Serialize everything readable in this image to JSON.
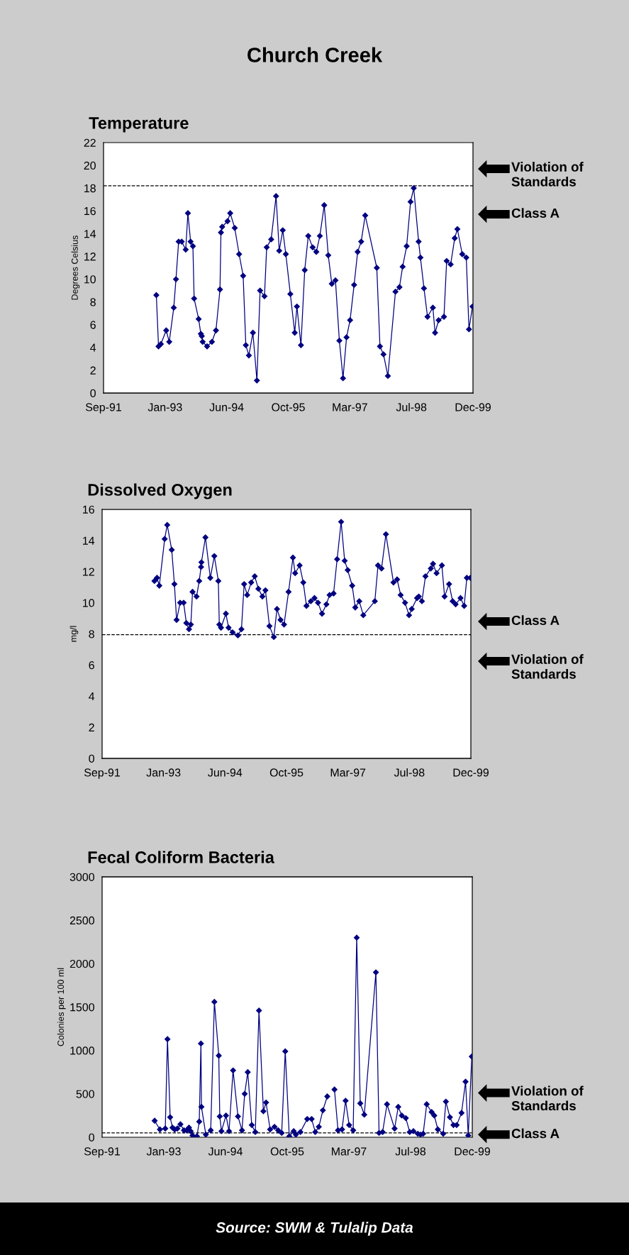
{
  "chart_data": [
    {
      "type": "line",
      "title": "Temperature",
      "ylabel": "Degrees Celsius",
      "marker": "diamond",
      "line_style": "solid",
      "xlim": [
        "1991-09-01",
        "1999-12-18"
      ],
      "xticks": [
        {
          "value": "1991-09-01",
          "label": "Sep-91"
        },
        {
          "value": "1993-01-18",
          "label": "Jan-93"
        },
        {
          "value": "1994-06-07",
          "label": "Jun-94"
        },
        {
          "value": "1995-10-25",
          "label": "Oct-95"
        },
        {
          "value": "1997-03-13",
          "label": "Mar-97"
        },
        {
          "value": "1998-07-31",
          "label": "Jul-98"
        },
        {
          "value": "1999-12-18",
          "label": "Dec-99"
        }
      ],
      "ylim": [
        0,
        22
      ],
      "yticks": [
        0,
        2,
        4,
        6,
        8,
        10,
        12,
        14,
        16,
        18,
        20,
        22
      ],
      "ref_lines": [
        {
          "axis": "y",
          "value": 18.2,
          "color": "#000000",
          "line_style": "dashed"
        }
      ],
      "annotations": [
        "Church Creek",
        "Violation of\nStandards",
        "Class A"
      ],
      "series": [
        {
          "color": "#000080",
          "x": [
            "1992-11-07",
            "1992-11-25",
            "1992-12-14",
            "1993-01-27",
            "1993-02-21",
            "1993-03-30",
            "1993-04-17",
            "1993-05-09",
            "1993-06-03",
            "1993-07-06",
            "1993-07-24",
            "1993-08-15",
            "1993-09-03",
            "1993-09-13",
            "1993-10-20",
            "1993-11-07",
            "1993-11-15",
            "1993-11-22",
            "1993-12-28",
            "1994-02-06",
            "1994-03-11",
            "1994-04-13",
            "1994-04-21",
            "1994-05-01",
            "1994-06-14",
            "1994-07-06",
            "1994-08-12",
            "1994-09-17",
            "1994-10-20",
            "1994-11-11",
            "1994-12-06",
            "1995-01-08",
            "1995-02-10",
            "1995-03-08",
            "1995-04-13",
            "1995-05-01",
            "1995-06-07",
            "1995-07-17",
            "1995-08-12",
            "1995-09-10",
            "1995-10-05",
            "1995-11-11",
            "1995-12-17",
            "1996-01-04",
            "1996-02-06",
            "1996-03-08",
            "1996-04-06",
            "1996-05-12",
            "1996-06-11",
            "1996-07-10",
            "1996-08-15",
            "1996-09-17",
            "1996-10-16",
            "1996-11-15",
            "1996-12-17",
            "1997-01-16",
            "1997-02-14",
            "1997-03-15",
            "1997-04-17",
            "1997-05-16",
            "1997-06-14",
            "1997-07-17",
            "1997-10-20",
            "1997-11-15",
            "1997-12-14",
            "1998-01-19",
            "1998-03-22",
            "1998-04-24",
            "1998-05-20",
            "1998-06-22",
            "1998-07-24",
            "1998-08-19",
            "1998-09-28",
            "1998-10-13",
            "1998-11-11",
            "1998-12-10",
            "1999-01-23",
            "1999-02-10",
            "1999-03-11",
            "1999-04-24",
            "1999-05-16",
            "1999-06-18",
            "1999-07-21",
            "1999-08-12",
            "1999-09-21",
            "1999-10-24",
            "1999-11-15",
            "1999-12-14"
          ],
          "values": [
            8.6,
            4.1,
            4.3,
            5.5,
            4.5,
            7.5,
            10.0,
            13.3,
            13.3,
            12.6,
            15.8,
            13.3,
            12.9,
            8.3,
            6.5,
            5.2,
            5.0,
            4.5,
            4.1,
            4.5,
            5.5,
            9.1,
            14.1,
            14.6,
            15.1,
            15.8,
            14.5,
            12.2,
            10.3,
            4.2,
            3.3,
            5.3,
            1.1,
            9.0,
            8.5,
            12.8,
            13.5,
            17.3,
            12.5,
            14.3,
            12.2,
            8.7,
            5.3,
            7.6,
            4.2,
            10.8,
            13.8,
            12.8,
            12.4,
            13.8,
            16.5,
            12.1,
            9.6,
            9.9,
            4.6,
            1.3,
            4.9,
            6.4,
            9.5,
            12.4,
            13.3,
            15.6,
            11.0,
            4.1,
            3.4,
            1.5,
            8.9,
            9.3,
            11.1,
            12.9,
            16.8,
            18.0,
            13.3,
            11.9,
            9.2,
            6.7,
            7.5,
            5.3,
            6.4,
            6.7,
            11.6,
            11.3,
            13.6,
            14.4,
            12.2,
            11.9,
            5.6,
            7.6
          ]
        }
      ]
    },
    {
      "type": "line",
      "title": "Dissolved Oxygen",
      "ylabel": "mg/l",
      "marker": "diamond",
      "line_style": "solid",
      "xlim": [
        "1991-09-01",
        "1999-12-18"
      ],
      "xticks": [
        {
          "value": "1991-09-01",
          "label": "Sep-91"
        },
        {
          "value": "1993-01-18",
          "label": "Jan-93"
        },
        {
          "value": "1994-06-07",
          "label": "Jun-94"
        },
        {
          "value": "1995-10-25",
          "label": "Oct-95"
        },
        {
          "value": "1997-03-13",
          "label": "Mar-97"
        },
        {
          "value": "1998-07-31",
          "label": "Jul-98"
        },
        {
          "value": "1999-12-18",
          "label": "Dec-99"
        }
      ],
      "ylim": [
        0,
        16
      ],
      "yticks": [
        0,
        2,
        4,
        6,
        8,
        10,
        12,
        14,
        16
      ],
      "ref_lines": [
        {
          "axis": "y",
          "value": 7.95,
          "color": "#000000",
          "line_style": "dashed"
        }
      ],
      "annotations": [
        "Class A",
        "Violation of\nStandards"
      ],
      "series": [
        {
          "color": "#000080",
          "x": [
            "1992-11-04",
            "1992-11-25",
            "1992-12-14",
            "1993-01-27",
            "1993-02-17",
            "1993-03-26",
            "1993-04-17",
            "1993-05-05",
            "1993-06-03",
            "1993-07-02",
            "1993-07-24",
            "1993-08-15",
            "1993-08-30",
            "1993-09-13",
            "1993-10-16",
            "1993-11-07",
            "1993-11-22",
            "1993-11-25",
            "1993-12-28",
            "1994-02-06",
            "1994-03-11",
            "1994-04-13",
            "1994-04-21",
            "1994-05-05",
            "1994-06-14",
            "1994-07-06",
            "1994-08-08",
            "1994-09-21",
            "1994-10-20",
            "1994-11-11",
            "1994-12-06",
            "1995-01-08",
            "1995-02-06",
            "1995-03-08",
            "1995-04-10",
            "1995-05-05",
            "1995-06-07",
            "1995-07-13",
            "1995-08-08",
            "1995-09-06",
            "1995-10-05",
            "1995-11-11",
            "1995-12-17",
            "1996-01-04",
            "1996-02-10",
            "1996-03-11",
            "1996-04-06",
            "1996-05-12",
            "1996-06-11",
            "1996-07-10",
            "1996-08-12",
            "1996-09-17",
            "1996-10-13",
            "1996-11-15",
            "1996-12-14",
            "1997-01-16",
            "1997-02-14",
            "1997-03-11",
            "1997-04-17",
            "1997-05-12",
            "1997-06-14",
            "1997-07-17",
            "1997-10-20",
            "1997-11-15",
            "1997-12-14",
            "1998-01-19",
            "1998-03-22",
            "1998-04-21",
            "1998-05-20",
            "1998-06-25",
            "1998-07-28",
            "1998-08-19",
            "1998-10-02",
            "1998-10-16",
            "1998-11-11",
            "1998-12-10",
            "1999-01-23",
            "1999-02-10",
            "1999-03-11",
            "1999-04-24",
            "1999-05-16",
            "1999-06-22",
            "1999-07-21",
            "1999-08-15",
            "1999-09-24",
            "1999-10-24",
            "1999-11-15",
            "1999-12-14"
          ],
          "values": [
            11.4,
            11.6,
            11.1,
            14.1,
            15.0,
            13.4,
            11.2,
            8.9,
            10.0,
            10.0,
            8.7,
            8.3,
            8.6,
            10.7,
            10.4,
            11.4,
            12.3,
            12.6,
            14.2,
            11.6,
            13.0,
            11.4,
            8.6,
            8.4,
            9.3,
            8.4,
            8.1,
            7.9,
            8.3,
            11.2,
            10.5,
            11.3,
            11.7,
            10.9,
            10.4,
            10.8,
            8.5,
            7.8,
            9.6,
            8.9,
            8.6,
            10.7,
            12.9,
            11.9,
            12.4,
            11.3,
            9.8,
            10.1,
            10.3,
            10.0,
            9.3,
            9.9,
            10.5,
            10.6,
            12.8,
            15.2,
            12.7,
            12.1,
            11.1,
            9.7,
            10.1,
            9.2,
            10.1,
            12.4,
            12.2,
            14.4,
            11.3,
            11.5,
            10.5,
            10.0,
            9.2,
            9.6,
            10.3,
            10.4,
            10.1,
            11.7,
            12.2,
            12.5,
            11.9,
            12.4,
            10.4,
            11.2,
            10.1,
            9.9,
            10.3,
            9.8,
            11.6,
            11.6
          ]
        }
      ]
    },
    {
      "type": "line",
      "title": "Fecal Coliform Bacteria",
      "ylabel": "Colonies per 100 ml",
      "marker": "diamond",
      "line_style": "solid",
      "xlim": [
        "1991-09-01",
        "1999-12-18"
      ],
      "xticks": [
        {
          "value": "1991-09-01",
          "label": "Sep-91"
        },
        {
          "value": "1993-01-18",
          "label": "Jan-93"
        },
        {
          "value": "1994-06-07",
          "label": "Jun-94"
        },
        {
          "value": "1995-10-25",
          "label": "Oct-95"
        },
        {
          "value": "1997-03-13",
          "label": "Mar-97"
        },
        {
          "value": "1998-07-31",
          "label": "Jul-98"
        },
        {
          "value": "1999-12-18",
          "label": "Dec-99"
        }
      ],
      "ylim": [
        0,
        3000
      ],
      "yticks": [
        0,
        500,
        1000,
        1500,
        2000,
        2500,
        3000
      ],
      "ref_lines": [
        {
          "axis": "y",
          "value": 50,
          "color": "#000000",
          "line_style": "dashed"
        }
      ],
      "annotations": [
        "Violation of\nStandards",
        "Class A",
        "Source: SWM & Tulalip Data"
      ],
      "series": [
        {
          "color": "#000080",
          "x": [
            "1992-11-04",
            "1992-12-17",
            "1993-01-30",
            "1993-02-17",
            "1993-03-11",
            "1993-03-30",
            "1993-04-17",
            "1993-05-09",
            "1993-06-03",
            "1993-07-02",
            "1993-07-24",
            "1993-08-12",
            "1993-08-26",
            "1993-09-10",
            "1993-10-16",
            "1993-11-04",
            "1993-11-18",
            "1993-11-22",
            "1993-12-28",
            "1994-02-06",
            "1994-03-08",
            "1994-04-13",
            "1994-04-21",
            "1994-05-05",
            "1994-06-11",
            "1994-07-06",
            "1994-08-08",
            "1994-09-17",
            "1994-10-20",
            "1994-11-11",
            "1994-12-06",
            "1995-01-08",
            "1995-02-06",
            "1995-03-08",
            "1995-04-13",
            "1995-05-05",
            "1995-06-07",
            "1995-07-13",
            "1995-08-12",
            "1995-09-10",
            "1995-10-09",
            "1995-11-11",
            "1995-12-17",
            "1996-01-04",
            "1996-02-10",
            "1996-04-06",
            "1996-05-12",
            "1996-06-11",
            "1996-07-10",
            "1996-08-12",
            "1996-09-17",
            "1996-10-16",
            "1996-11-15",
            "1996-12-14",
            "1997-01-16",
            "1997-02-14",
            "1997-03-15",
            "1997-04-17",
            "1997-05-16",
            "1997-06-14",
            "1997-07-17",
            "1997-10-20",
            "1997-11-15",
            "1997-12-14",
            "1998-01-19",
            "1998-03-22",
            "1998-04-21",
            "1998-05-20",
            "1998-06-22",
            "1998-07-24",
            "1998-08-23",
            "1998-09-28",
            "1998-10-20",
            "1998-11-11",
            "1998-12-10",
            "1999-01-19",
            "1999-02-10",
            "1999-03-11",
            "1999-04-24",
            "1999-05-16",
            "1999-06-18",
            "1999-07-17",
            "1999-08-12",
            "1999-09-21",
            "1999-10-24",
            "1999-11-15",
            "1999-12-14"
          ],
          "values": [
            190,
            90,
            100,
            1130,
            230,
            110,
            90,
            100,
            150,
            80,
            80,
            110,
            70,
            20,
            10,
            180,
            1080,
            350,
            30,
            80,
            1560,
            940,
            240,
            70,
            250,
            70,
            770,
            240,
            80,
            500,
            750,
            140,
            60,
            1460,
            300,
            400,
            90,
            120,
            80,
            50,
            990,
            10,
            70,
            30,
            60,
            210,
            210,
            60,
            120,
            310,
            470,
            null,
            550,
            80,
            90,
            420,
            140,
            80,
            2300,
            390,
            260,
            1900,
            50,
            60,
            380,
            100,
            350,
            250,
            220,
            60,
            70,
            40,
            30,
            40,
            380,
            290,
            250,
            90,
            40,
            410,
            230,
            140,
            140,
            280,
            640,
            20,
            930
          ]
        }
      ]
    }
  ]
}
